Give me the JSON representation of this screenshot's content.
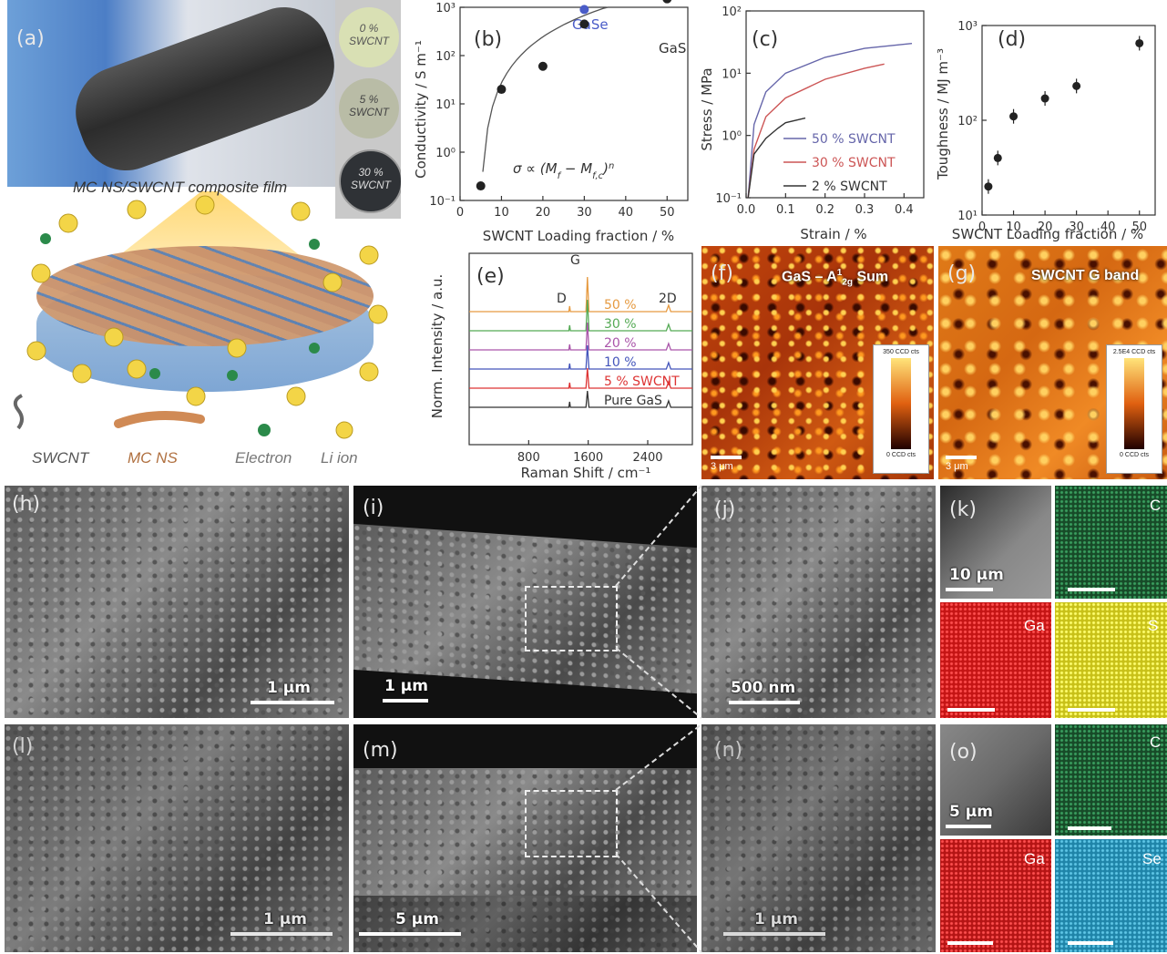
{
  "panels": {
    "a": {
      "label": "(a)",
      "vials": [
        "0 %",
        "SWCNT",
        "5 %",
        "SWCNT",
        "30 %",
        "SWCNT"
      ],
      "film_title": "MC NS/SWCNT composite film",
      "legend": [
        "SWCNT",
        "MC NS",
        "Electron",
        "Li ion"
      ],
      "ion": "Li⁺"
    },
    "b": {
      "label": "(b)",
      "annot_gase": "GaSe",
      "annot_gas": "GaS",
      "formula": "σ ∝ (M",
      "formula_tail": " − M",
      "formula_end": ")",
      "formula_sub1": "f",
      "formula_sub2": "f,c",
      "formula_exp": "n"
    },
    "c": {
      "label": "(c)",
      "legend": [
        "50 % SWCNT",
        "30 % SWCNT",
        "2 % SWCNT"
      ]
    },
    "d": {
      "label": "(d)"
    },
    "e": {
      "label": "(e)",
      "peaks": [
        "D",
        "G",
        "2D"
      ],
      "traces": [
        "50 %",
        "30 %",
        "20 %",
        "10 %",
        "5 % SWCNT",
        "Pure GaS"
      ]
    },
    "f": {
      "label": "(f)",
      "title": "GaS – A",
      "title_sup": "1",
      "title_sub": "2g",
      "title_end": " Sum",
      "cbar_top": "350 CCD cts",
      "cbar_bot": "0 CCD cts",
      "scale": "3 μm"
    },
    "g": {
      "label": "(g)",
      "title": "SWCNT G band",
      "cbar_top": "2.5E4 CCD cts",
      "cbar_bot": "0 CCD cts",
      "scale": "3 μm"
    },
    "h": {
      "label": "(h)",
      "scale": "1 μm"
    },
    "i": {
      "label": "(i)",
      "scale": "1 μm"
    },
    "j": {
      "label": "(j)",
      "scale": "500 nm"
    },
    "k": {
      "label": "(k)",
      "scale": "10 μm",
      "maps": [
        "C",
        "Ga",
        "S"
      ]
    },
    "l": {
      "label": "(l)",
      "scale": "1 μm"
    },
    "m": {
      "label": "(m)",
      "scale": "5 μm"
    },
    "n": {
      "label": "(n)",
      "scale": "1 μm"
    },
    "o": {
      "label": "(o)",
      "scale": "5 μm",
      "maps": [
        "C",
        "Ga",
        "Se"
      ]
    }
  },
  "chart_data": [
    {
      "type": "scatter",
      "panel": "b",
      "xlabel": "SWCNT Loading fraction / %",
      "ylabel": "Conductivity / S m⁻¹",
      "xlim": [
        0,
        55
      ],
      "ylog": true,
      "ylim": [
        0.1,
        1000
      ],
      "x_ticks": [
        "0",
        "10",
        "20",
        "30",
        "40",
        "50"
      ],
      "y_ticks": [
        "10⁻¹",
        "10⁰",
        "10¹",
        "10²",
        "10³"
      ],
      "x": [
        5,
        10,
        20,
        30,
        50
      ],
      "y": [
        0.2,
        20,
        60,
        450,
        1500
      ],
      "gase_point": [
        30,
        900
      ]
    },
    {
      "type": "line",
      "panel": "c",
      "xlabel": "Strain / %",
      "ylabel": "Stress / MPa",
      "xlim": [
        0,
        0.45
      ],
      "ylog": true,
      "ylim": [
        0.1,
        100
      ],
      "x_ticks": [
        "0.0",
        "0.1",
        "0.2",
        "0.3",
        "0.4"
      ],
      "y_ticks": [
        "10⁻¹",
        "10⁰",
        "10¹",
        "10²"
      ],
      "series": [
        {
          "name": "50 % SWCNT",
          "color": "#6666aa",
          "x": [
            0.005,
            0.02,
            0.05,
            0.1,
            0.2,
            0.3,
            0.42
          ],
          "y": [
            0.1,
            1.5,
            5,
            10,
            18,
            25,
            30
          ]
        },
        {
          "name": "30 % SWCNT",
          "color": "#cc5555",
          "x": [
            0.005,
            0.02,
            0.05,
            0.1,
            0.2,
            0.3,
            0.35
          ],
          "y": [
            0.1,
            0.6,
            2,
            4,
            8,
            12,
            14
          ]
        },
        {
          "name": "2 % SWCNT",
          "color": "#333333",
          "x": [
            0.005,
            0.02,
            0.05,
            0.08,
            0.1,
            0.15
          ],
          "y": [
            0.1,
            0.5,
            0.9,
            1.3,
            1.6,
            1.9
          ]
        }
      ]
    },
    {
      "type": "scatter",
      "panel": "d",
      "xlabel": "SWCNT Loading fraction / %",
      "ylabel": "Toughness / MJ m⁻³",
      "xlim": [
        0,
        55
      ],
      "ylog": true,
      "ylim": [
        10,
        1000
      ],
      "x_ticks": [
        "0",
        "10",
        "20",
        "30",
        "40",
        "50"
      ],
      "y_ticks": [
        "10¹",
        "10²",
        "10³"
      ],
      "x": [
        2,
        5,
        10,
        20,
        30,
        50
      ],
      "y": [
        20,
        40,
        110,
        170,
        230,
        650
      ]
    },
    {
      "type": "line",
      "panel": "e",
      "xlabel": "Raman Shift / cm⁻¹",
      "ylabel": "Norm. Intensity / a.u.",
      "xlim": [
        0,
        3000
      ],
      "x_ticks": [
        "800",
        "1600",
        "2400"
      ],
      "series": [
        {
          "name": "50 %",
          "color": "#e69a40"
        },
        {
          "name": "30 %",
          "color": "#55aa55"
        },
        {
          "name": "20 %",
          "color": "#aa55aa"
        },
        {
          "name": "10 %",
          "color": "#4455bb"
        },
        {
          "name": "5 % SWCNT",
          "color": "#dd3333"
        },
        {
          "name": "Pure GaS",
          "color": "#333333"
        }
      ]
    }
  ]
}
